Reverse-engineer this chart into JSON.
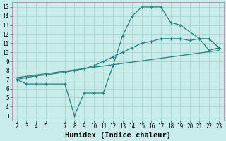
{
  "line1_x": [
    2,
    3,
    4,
    5,
    7,
    8,
    9,
    10,
    11,
    12,
    13,
    14,
    15,
    16,
    17,
    18,
    19,
    21,
    22,
    23
  ],
  "line1_y": [
    7,
    6.5,
    6.5,
    6.5,
    6.5,
    3,
    5.5,
    5.5,
    5.5,
    8.5,
    11.8,
    14,
    15,
    15,
    15,
    13.3,
    13,
    11.5,
    10.2,
    10.5
  ],
  "line2_x": [
    2,
    3,
    4,
    5,
    7,
    8,
    9,
    10,
    11,
    12,
    13,
    14,
    15,
    16,
    17,
    18,
    19,
    20,
    21,
    22,
    23
  ],
  "line2_y": [
    7,
    7.2,
    7.4,
    7.5,
    7.8,
    8.0,
    8.2,
    8.5,
    9.0,
    9.5,
    10.0,
    10.5,
    11.0,
    11.2,
    11.5,
    11.5,
    11.5,
    11.3,
    11.5,
    11.5,
    10.5
  ],
  "line3_x": [
    2,
    23
  ],
  "line3_y": [
    7.2,
    10.2
  ],
  "line_color": "#2a7d7d",
  "bg_color": "#c8ecea",
  "grid_color": "#a8d5d2",
  "xlabel": "Humidex (Indice chaleur)",
  "xlim": [
    1.5,
    23.5
  ],
  "ylim": [
    2.5,
    15.5
  ],
  "xticks": [
    2,
    3,
    4,
    5,
    7,
    8,
    9,
    10,
    11,
    12,
    13,
    14,
    15,
    16,
    17,
    18,
    19,
    20,
    21,
    22,
    23
  ],
  "yticks": [
    3,
    4,
    5,
    6,
    7,
    8,
    9,
    10,
    11,
    12,
    13,
    14,
    15
  ],
  "tick_fontsize": 5.5,
  "xlabel_fontsize": 7.5,
  "marker": "+"
}
